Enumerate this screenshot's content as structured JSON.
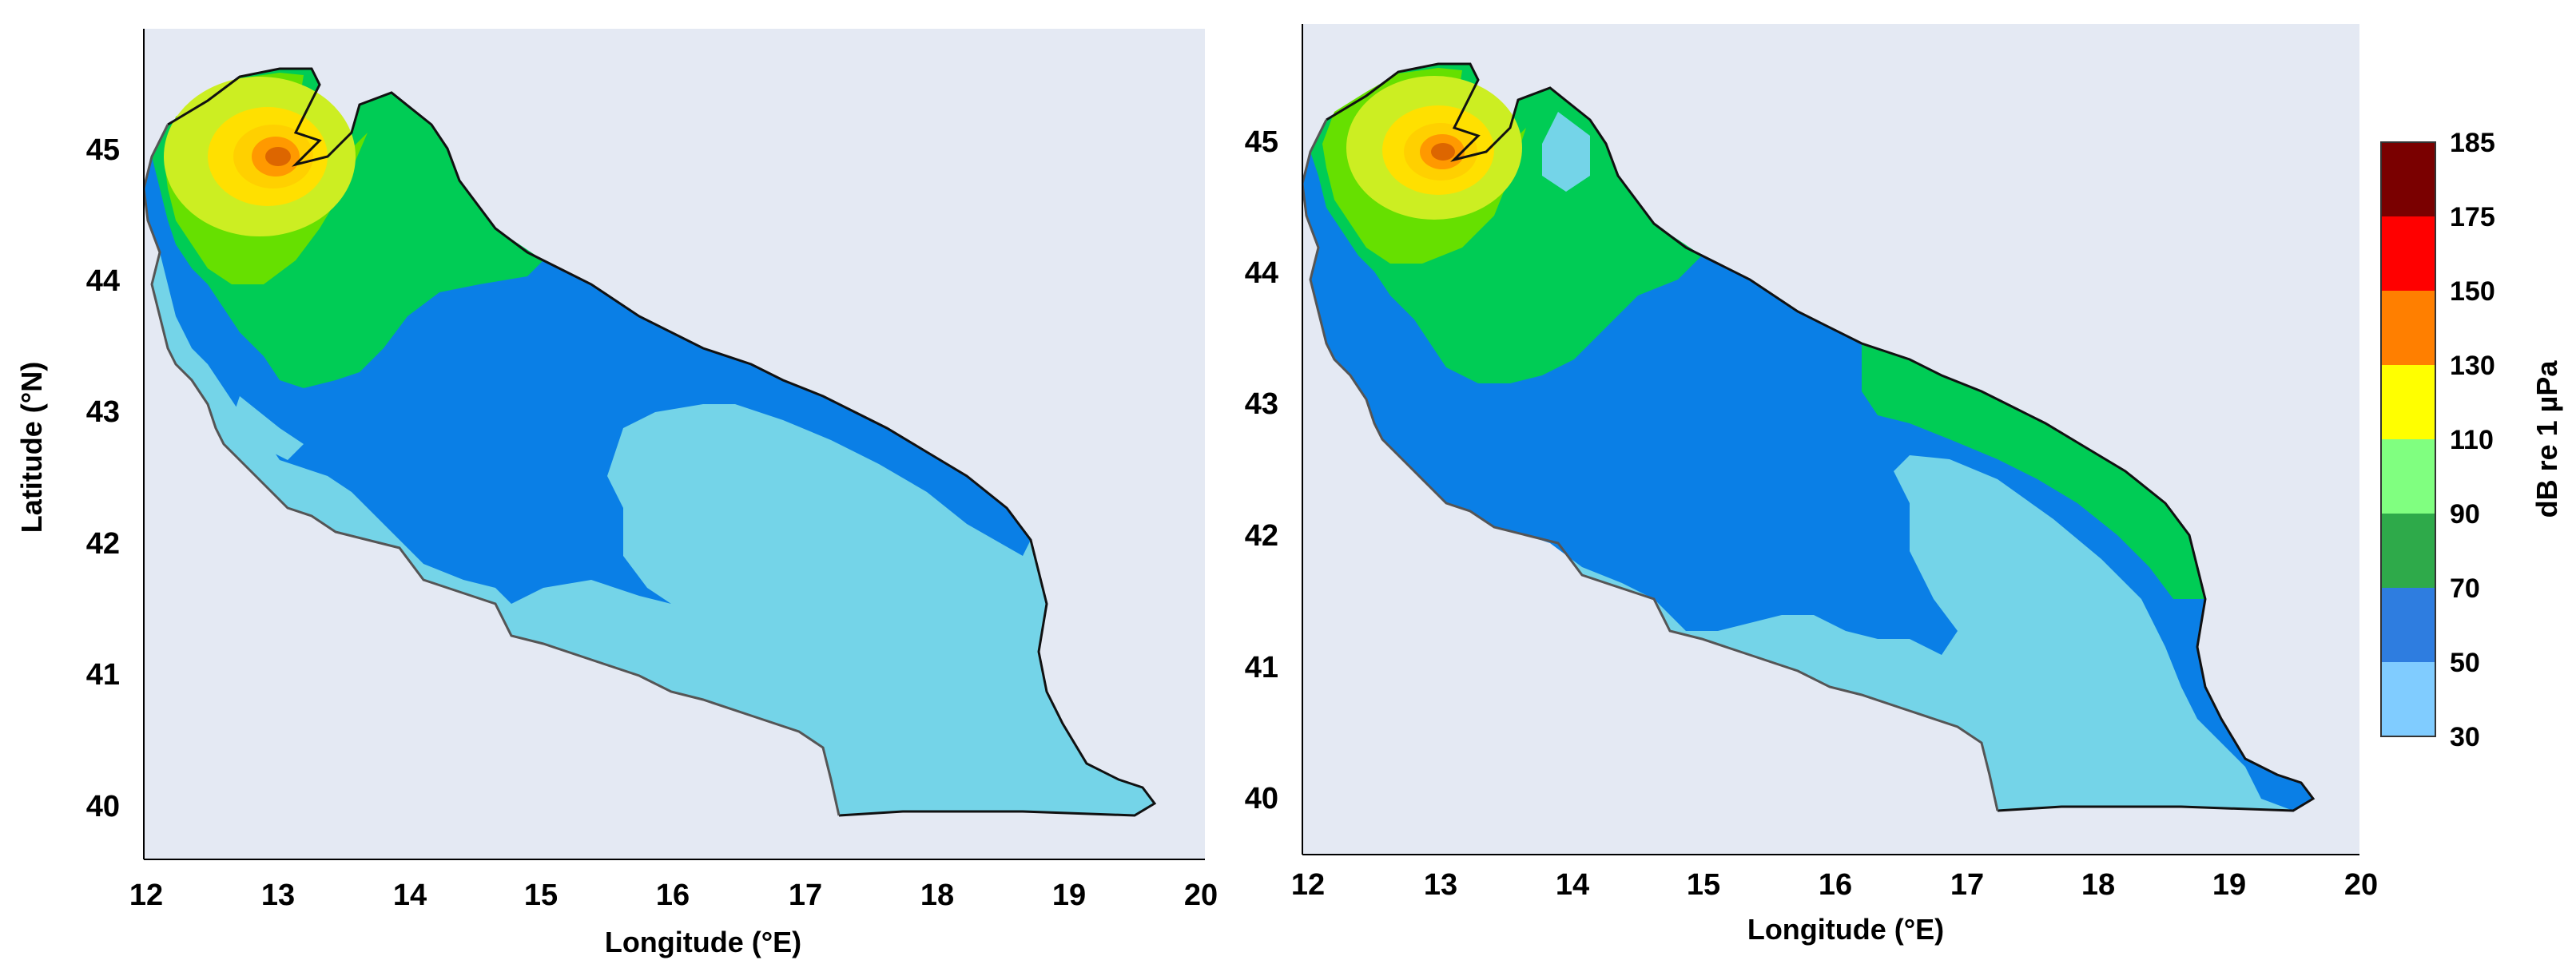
{
  "maps": [
    {
      "id": "left",
      "xlabel": "Longitude (°E)",
      "ylabel": "Latitude (°N)",
      "x_ticks": [
        "12",
        "13",
        "14",
        "15",
        "16",
        "17",
        "18",
        "19",
        "20"
      ],
      "y_ticks": [
        "40",
        "41",
        "42",
        "43",
        "44",
        "45"
      ]
    },
    {
      "id": "right",
      "xlabel": "Longitude (°E)",
      "y_ticks": [
        "40",
        "41",
        "42",
        "43",
        "44",
        "45"
      ],
      "x_ticks": [
        "12",
        "13",
        "14",
        "15",
        "16",
        "17",
        "18",
        "19",
        "20"
      ]
    }
  ],
  "colorbar": {
    "label": "dB re 1 µPa",
    "ticks": [
      "185",
      "175",
      "150",
      "130",
      "110",
      "90",
      "70",
      "50",
      "30"
    ],
    "bands": [
      {
        "from": 175,
        "to": 185,
        "color": "#7a0000"
      },
      {
        "from": 150,
        "to": 175,
        "color": "#ff0000"
      },
      {
        "from": 130,
        "to": 150,
        "color": "#ff7f00"
      },
      {
        "from": 110,
        "to": 130,
        "color": "#ffff00"
      },
      {
        "from": 90,
        "to": 110,
        "color": "#80ff80"
      },
      {
        "from": 70,
        "to": 90,
        "color": "#2eaa4a"
      },
      {
        "from": 50,
        "to": 70,
        "color": "#2e7de0"
      },
      {
        "from": 30,
        "to": 50,
        "color": "#80ccff"
      }
    ]
  },
  "map_colors": {
    "background": "#e4e9f3",
    "light_blue": "#74d4e8",
    "blue": "#0a7fe6",
    "green": "#00cc55",
    "light_green": "#66e000",
    "yellow_green": "#ccee22",
    "yellow": "#ffe000",
    "orange": "#ff9900",
    "dark_orange": "#dd6600",
    "coast": "#111111"
  },
  "source_location": {
    "lon": 13.0,
    "lat": 44.75
  }
}
